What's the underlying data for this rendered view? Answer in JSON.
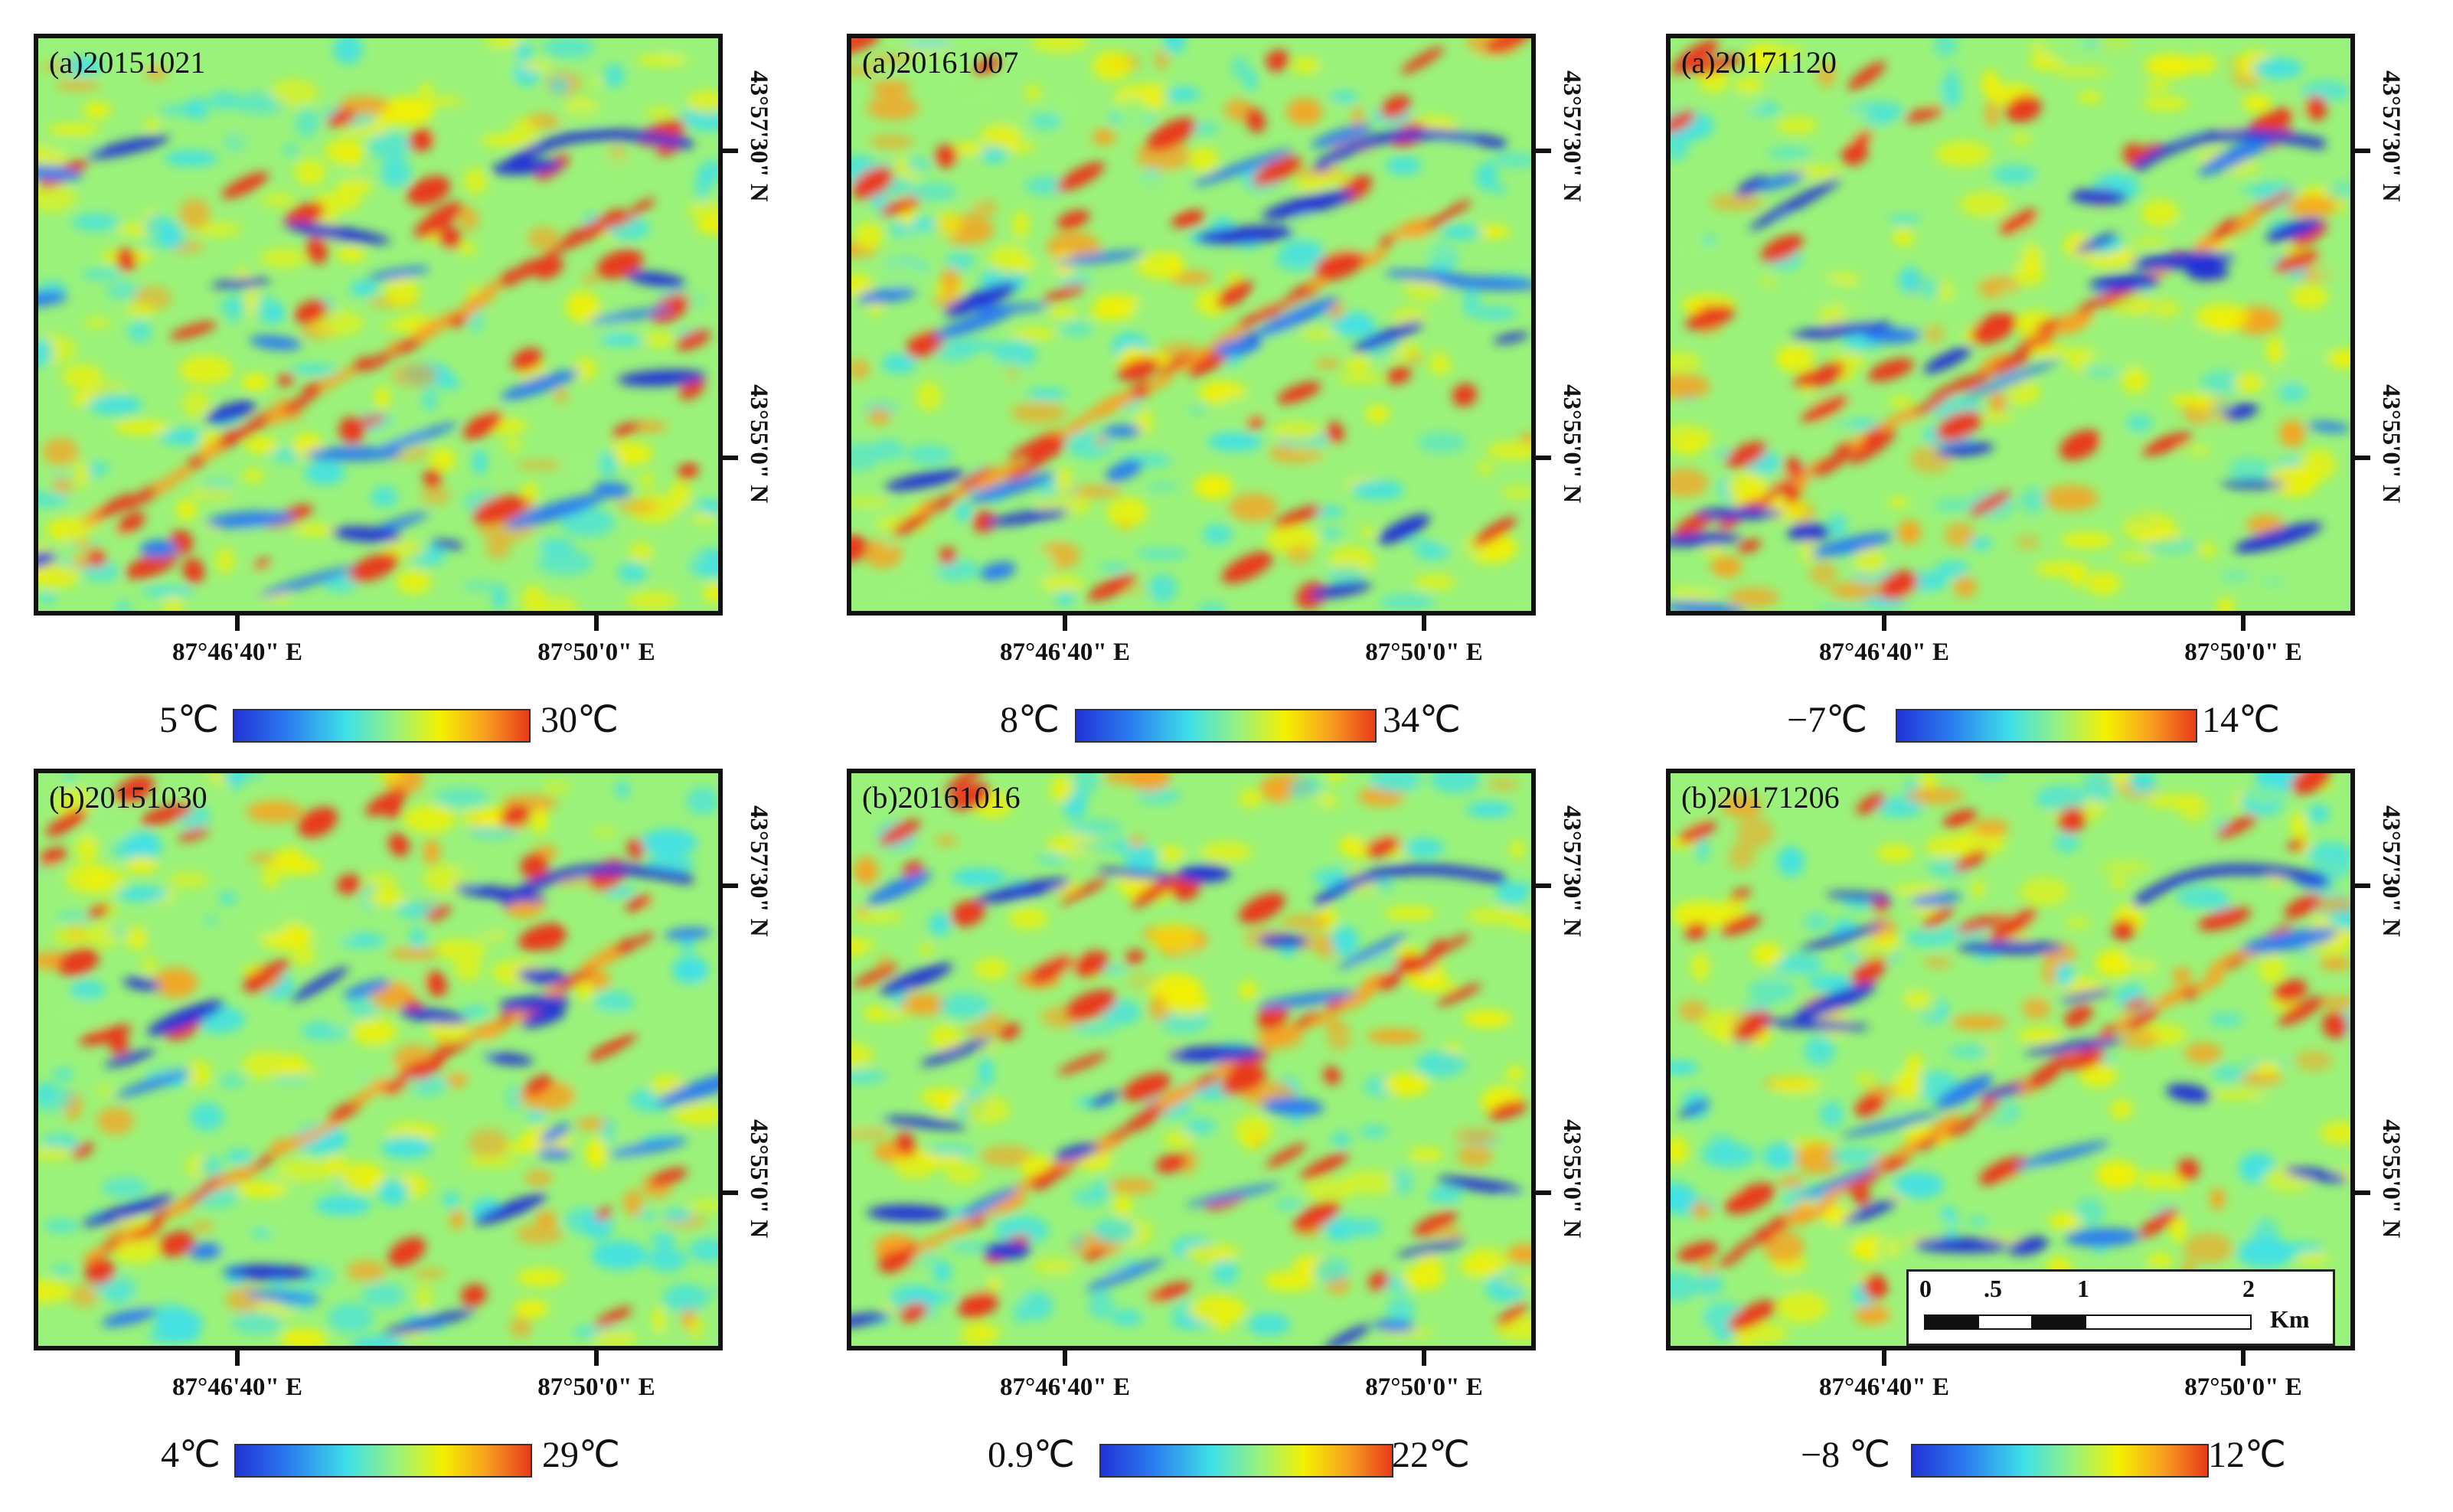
{
  "x_axis_labels": [
    "87°46'40\" E",
    "87°50'0\" E"
  ],
  "y_axis_labels": [
    "43°57'30\" N",
    "43°55'0\" N"
  ],
  "colormap": [
    "#2233d6",
    "#2a7cf0",
    "#3fe0e8",
    "#9bf27a",
    "#f4f000",
    "#f8a020",
    "#e83a1a"
  ],
  "panels": [
    {
      "title": "(a)20151021",
      "cb_min": "5℃",
      "cb_max": "30℃"
    },
    {
      "title": "(a)20161007",
      "cb_min": "8℃",
      "cb_max": "34℃"
    },
    {
      "title": "(a)20171120",
      "cb_min": "−7℃",
      "cb_max": "14℃"
    },
    {
      "title": "(b)20151030",
      "cb_min": "4℃",
      "cb_max": "29℃"
    },
    {
      "title": "(b)20161016",
      "cb_min": "0.9℃",
      "cb_max": "22℃"
    },
    {
      "title": "(b)20171206",
      "cb_min": "−8 ℃",
      "cb_max": "12℃"
    }
  ],
  "scale_bar": {
    "ticks": [
      "0",
      ".5",
      "1",
      "2"
    ],
    "unit": "Km"
  }
}
